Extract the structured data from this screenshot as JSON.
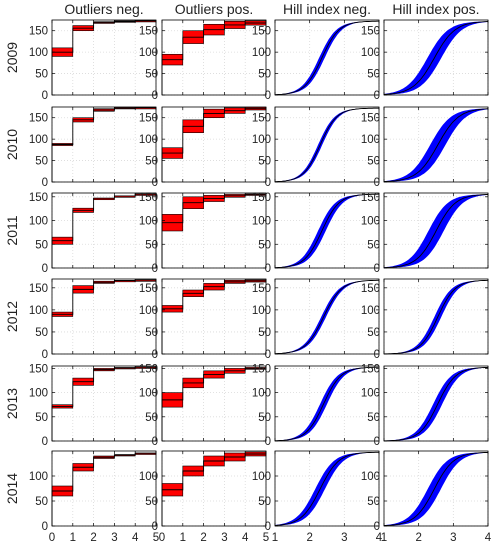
{
  "chart_data": {
    "type": "area",
    "layout": "grid 6x4",
    "column_titles": [
      "Outliers neg.",
      "Outliers pos.",
      "Hill index neg.",
      "Hill index pos."
    ],
    "row_labels": [
      "2009",
      "2010",
      "2011",
      "2012",
      "2013",
      "2014"
    ],
    "grid": true,
    "x_ticks_outliers": [
      0,
      1,
      2,
      3,
      4,
      5
    ],
    "x_ticks_hill": [
      1,
      2,
      3,
      4
    ],
    "xlim_outliers": [
      0,
      5
    ],
    "xlim_hill": [
      1,
      4
    ],
    "ylims": [
      [
        0,
        175
      ],
      [
        0,
        175
      ],
      [
        0,
        158
      ],
      [
        0,
        170
      ],
      [
        0,
        155
      ],
      [
        0,
        150
      ]
    ],
    "y_ticks": [
      [
        0,
        50,
        100,
        150
      ],
      [
        0,
        50,
        100,
        150
      ],
      [
        0,
        50,
        100,
        150
      ],
      [
        0,
        50,
        100,
        150
      ],
      [
        0,
        50,
        100,
        150
      ],
      [
        0,
        50,
        100
      ]
    ],
    "colors": {
      "outlier_band": "#ff0000",
      "hill_band": "#0000ff",
      "line": "#000000",
      "grid": "#d9d9d9"
    },
    "outliers_neg": [
      [
        [
          90,
          110
        ],
        [
          150,
          162
        ],
        [
          167,
          171
        ],
        [
          170,
          173
        ],
        [
          172,
          174
        ]
      ],
      [
        [
          85,
          90
        ],
        [
          140,
          150
        ],
        [
          165,
          171
        ],
        [
          171,
          174
        ],
        [
          173,
          174
        ]
      ],
      [
        [
          50,
          65
        ],
        [
          117,
          126
        ],
        [
          147,
          147
        ],
        [
          151,
          152
        ],
        [
          155,
          156
        ]
      ],
      [
        [
          85,
          95
        ],
        [
          138,
          155
        ],
        [
          160,
          165
        ],
        [
          166,
          167
        ],
        [
          167,
          168
        ]
      ],
      [
        [
          68,
          75
        ],
        [
          115,
          130
        ],
        [
          145,
          150
        ],
        [
          150,
          152
        ],
        [
          152,
          153
        ]
      ],
      [
        [
          60,
          80
        ],
        [
          110,
          125
        ],
        [
          135,
          140
        ],
        [
          141,
          143
        ],
        [
          145,
          146
        ]
      ]
    ],
    "outliers_pos": [
      [
        [
          70,
          95
        ],
        [
          120,
          150
        ],
        [
          140,
          165
        ],
        [
          155,
          172
        ],
        [
          163,
          173
        ]
      ],
      [
        [
          55,
          80
        ],
        [
          115,
          145
        ],
        [
          150,
          170
        ],
        [
          160,
          173
        ],
        [
          168,
          174
        ]
      ],
      [
        [
          78,
          113
        ],
        [
          125,
          150
        ],
        [
          140,
          153
        ],
        [
          149,
          155
        ],
        [
          153,
          156
        ]
      ],
      [
        [
          95,
          110
        ],
        [
          130,
          145
        ],
        [
          145,
          160
        ],
        [
          160,
          167
        ],
        [
          163,
          168
        ]
      ],
      [
        [
          70,
          100
        ],
        [
          110,
          130
        ],
        [
          130,
          145
        ],
        [
          140,
          150
        ],
        [
          148,
          152
        ]
      ],
      [
        [
          60,
          85
        ],
        [
          100,
          120
        ],
        [
          120,
          140
        ],
        [
          130,
          146
        ],
        [
          140,
          148
        ]
      ]
    ],
    "hill_neg": [
      {
        "center": 2.35,
        "scale": 0.25,
        "width": 0.08
      },
      {
        "center": 2.3,
        "scale": 0.24,
        "width": 0.06
      },
      {
        "center": 2.35,
        "scale": 0.25,
        "width": 0.11
      },
      {
        "center": 2.4,
        "scale": 0.26,
        "width": 0.07
      },
      {
        "center": 2.4,
        "scale": 0.25,
        "width": 0.1
      },
      {
        "center": 2.3,
        "scale": 0.27,
        "width": 0.14
      }
    ],
    "hill_pos": [
      {
        "center": 2.45,
        "scale": 0.3,
        "width": 0.2
      },
      {
        "center": 2.55,
        "scale": 0.3,
        "width": 0.22
      },
      {
        "center": 2.5,
        "scale": 0.28,
        "width": 0.22
      },
      {
        "center": 2.55,
        "scale": 0.25,
        "width": 0.1
      },
      {
        "center": 2.55,
        "scale": 0.26,
        "width": 0.13
      },
      {
        "center": 2.45,
        "scale": 0.28,
        "width": 0.19
      }
    ]
  }
}
